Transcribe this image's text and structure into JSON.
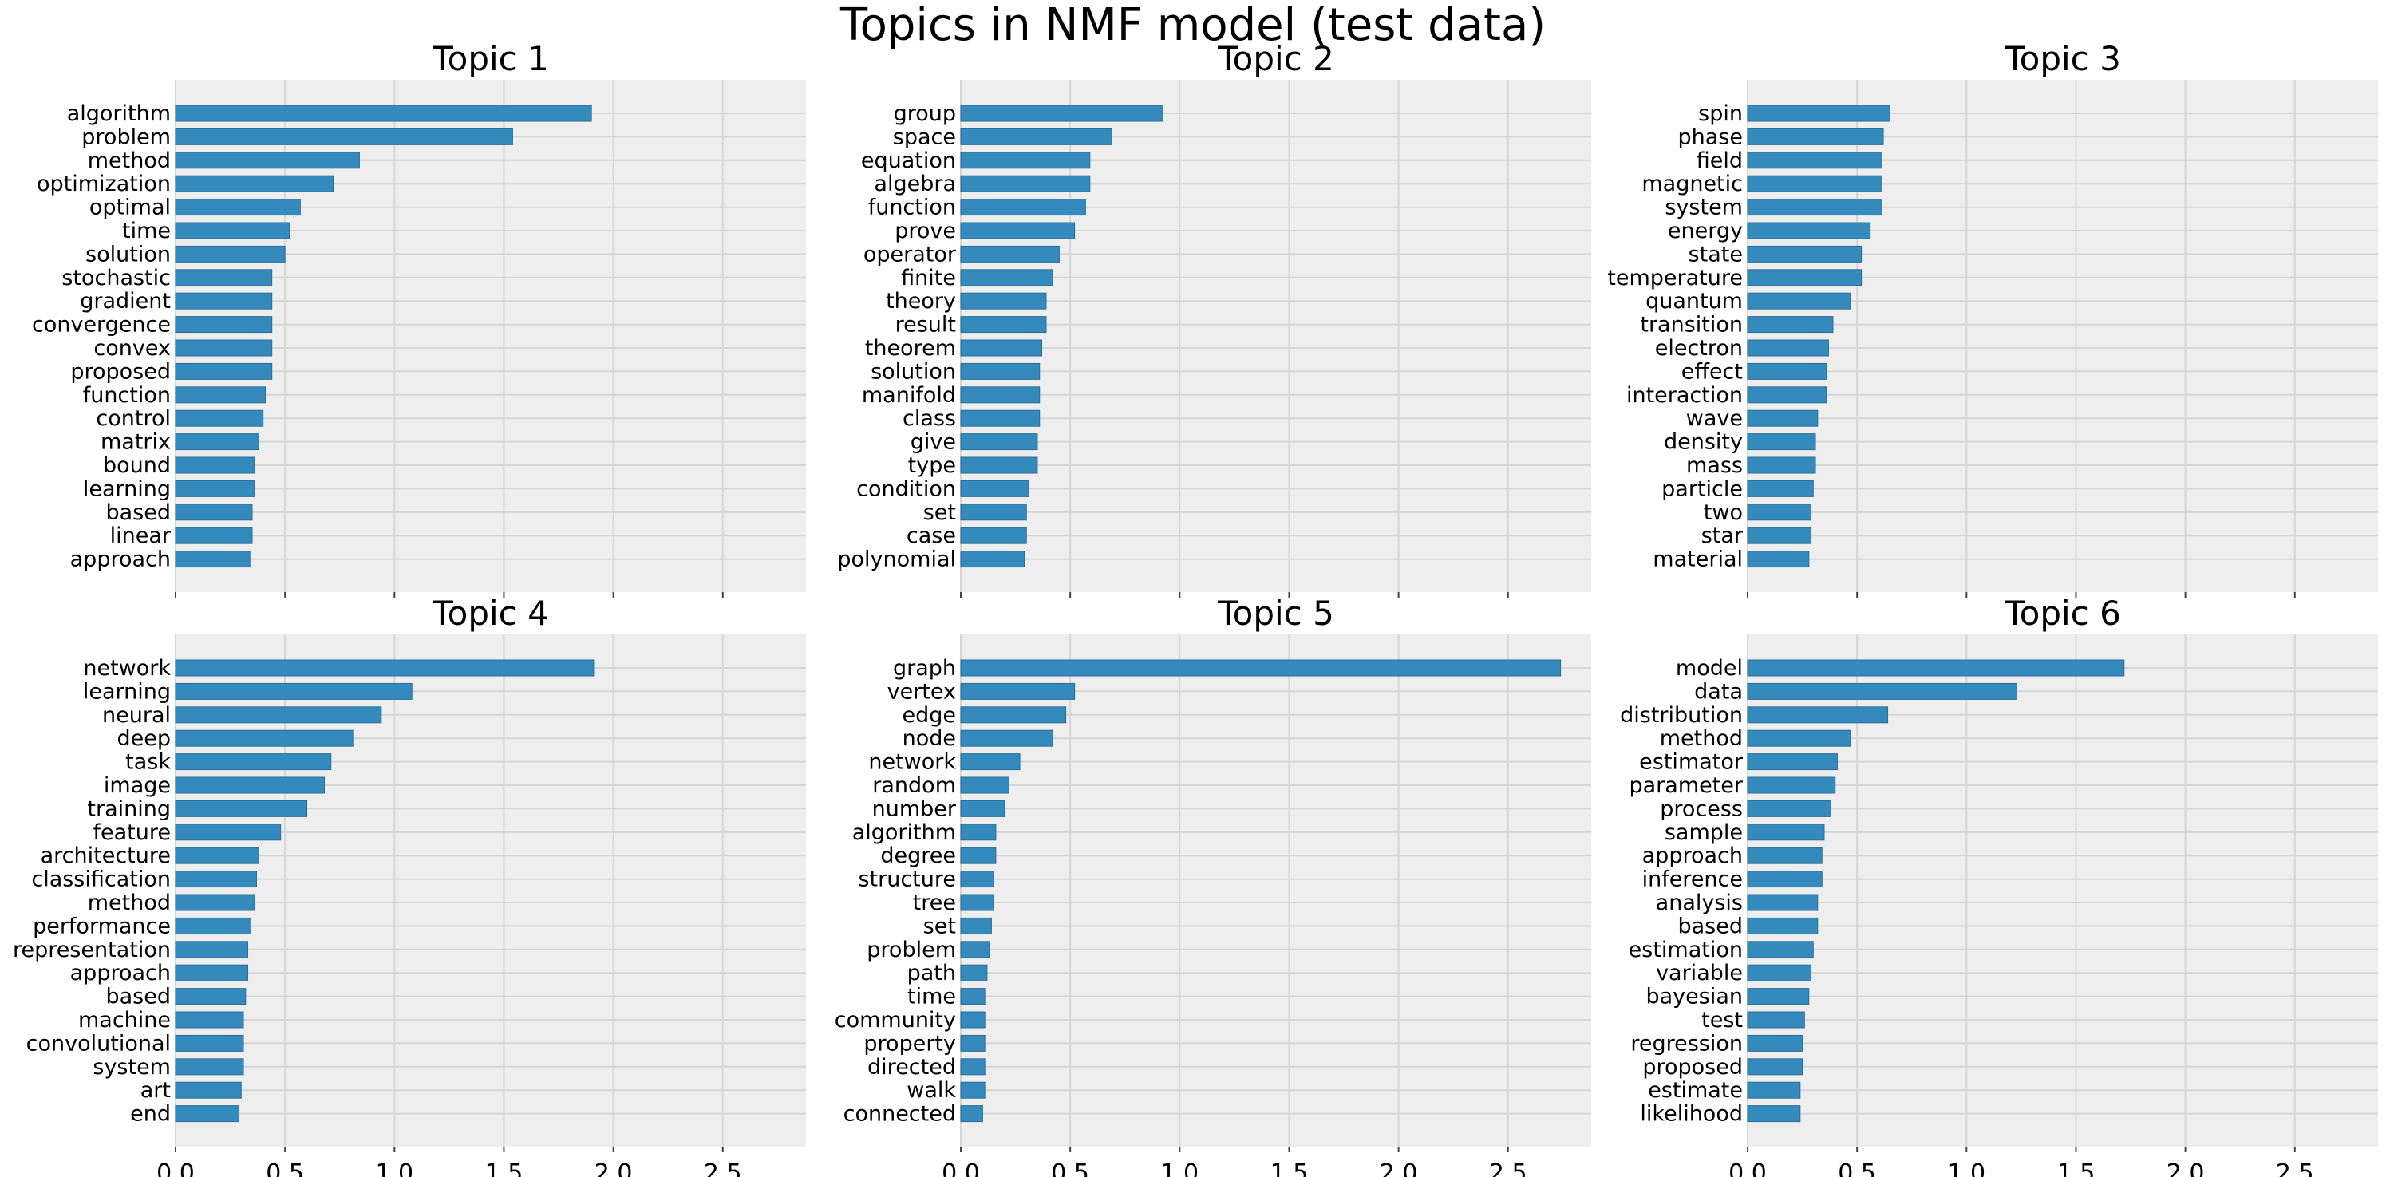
{
  "chart_data": {
    "type": "bar",
    "title": "Topics in NMF model (test data)",
    "orientation": "horizontal",
    "xlim": [
      0,
      2.88
    ],
    "xticks": [
      0.0,
      0.5,
      1.0,
      1.5,
      2.0,
      2.5
    ],
    "xtick_labels": [
      "0.0",
      "0.5",
      "1.0",
      "1.5",
      "2.0",
      "2.5"
    ],
    "grid": true,
    "bar_color": "#348abd",
    "background_color": "#eeeeee",
    "panels": [
      {
        "title": "Topic 1",
        "categories": [
          "algorithm",
          "problem",
          "method",
          "optimization",
          "optimal",
          "time",
          "solution",
          "stochastic",
          "gradient",
          "convergence",
          "convex",
          "proposed",
          "function",
          "control",
          "matrix",
          "bound",
          "learning",
          "based",
          "linear",
          "approach"
        ],
        "values": [
          1.9,
          1.54,
          0.84,
          0.72,
          0.57,
          0.52,
          0.5,
          0.44,
          0.44,
          0.44,
          0.44,
          0.44,
          0.41,
          0.4,
          0.38,
          0.36,
          0.36,
          0.35,
          0.35,
          0.34
        ]
      },
      {
        "title": "Topic 2",
        "categories": [
          "group",
          "space",
          "equation",
          "algebra",
          "function",
          "prove",
          "operator",
          "finite",
          "theory",
          "result",
          "theorem",
          "solution",
          "manifold",
          "class",
          "give",
          "type",
          "condition",
          "set",
          "case",
          "polynomial"
        ],
        "values": [
          0.92,
          0.69,
          0.59,
          0.59,
          0.57,
          0.52,
          0.45,
          0.42,
          0.39,
          0.39,
          0.37,
          0.36,
          0.36,
          0.36,
          0.35,
          0.35,
          0.31,
          0.3,
          0.3,
          0.29
        ]
      },
      {
        "title": "Topic 3",
        "categories": [
          "spin",
          "phase",
          "field",
          "magnetic",
          "system",
          "energy",
          "state",
          "temperature",
          "quantum",
          "transition",
          "electron",
          "effect",
          "interaction",
          "wave",
          "density",
          "mass",
          "particle",
          "two",
          "star",
          "material"
        ],
        "values": [
          0.65,
          0.62,
          0.61,
          0.61,
          0.61,
          0.56,
          0.52,
          0.52,
          0.47,
          0.39,
          0.37,
          0.36,
          0.36,
          0.32,
          0.31,
          0.31,
          0.3,
          0.29,
          0.29,
          0.28
        ]
      },
      {
        "title": "Topic 4",
        "categories": [
          "network",
          "learning",
          "neural",
          "deep",
          "task",
          "image",
          "training",
          "feature",
          "architecture",
          "classification",
          "method",
          "performance",
          "representation",
          "approach",
          "based",
          "machine",
          "convolutional",
          "system",
          "art",
          "end"
        ],
        "values": [
          1.91,
          1.08,
          0.94,
          0.81,
          0.71,
          0.68,
          0.6,
          0.48,
          0.38,
          0.37,
          0.36,
          0.34,
          0.33,
          0.33,
          0.32,
          0.31,
          0.31,
          0.31,
          0.3,
          0.29
        ]
      },
      {
        "title": "Topic 5",
        "categories": [
          "graph",
          "vertex",
          "edge",
          "node",
          "network",
          "random",
          "number",
          "algorithm",
          "degree",
          "structure",
          "tree",
          "set",
          "problem",
          "path",
          "time",
          "community",
          "property",
          "directed",
          "walk",
          "connected"
        ],
        "values": [
          2.74,
          0.52,
          0.48,
          0.42,
          0.27,
          0.22,
          0.2,
          0.16,
          0.16,
          0.15,
          0.15,
          0.14,
          0.13,
          0.12,
          0.11,
          0.11,
          0.11,
          0.11,
          0.11,
          0.1
        ]
      },
      {
        "title": "Topic 6",
        "categories": [
          "model",
          "data",
          "distribution",
          "method",
          "estimator",
          "parameter",
          "process",
          "sample",
          "approach",
          "inference",
          "analysis",
          "based",
          "estimation",
          "variable",
          "bayesian",
          "test",
          "regression",
          "proposed",
          "estimate",
          "likelihood"
        ],
        "values": [
          1.72,
          1.23,
          0.64,
          0.47,
          0.41,
          0.4,
          0.38,
          0.35,
          0.34,
          0.34,
          0.32,
          0.32,
          0.3,
          0.29,
          0.28,
          0.26,
          0.25,
          0.25,
          0.24,
          0.24
        ]
      }
    ]
  }
}
